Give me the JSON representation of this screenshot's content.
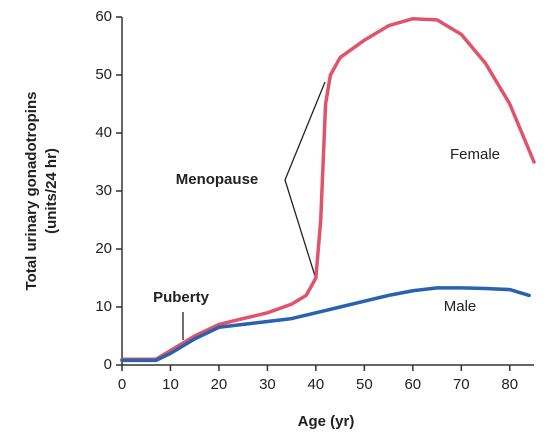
{
  "chart_data": {
    "type": "line",
    "x_label": "Age (yr)",
    "y_label": [
      "Total urinary gonadotropins",
      "(units/24 hr)"
    ],
    "xlim": [
      0,
      85
    ],
    "ylim": [
      0,
      60
    ],
    "xticks": [
      0,
      10,
      20,
      30,
      40,
      50,
      60,
      70,
      80
    ],
    "yticks": [
      0,
      10,
      20,
      30,
      40,
      50,
      60
    ],
    "grid": false,
    "series": [
      {
        "name": "Female",
        "color": "#df5468",
        "x": [
          0,
          7,
          10,
          15,
          20,
          25,
          30,
          35,
          38,
          40,
          41,
          42,
          43,
          45,
          50,
          55,
          60,
          65,
          70,
          75,
          80,
          85
        ],
        "values": [
          1,
          1,
          2.5,
          5,
          7,
          8,
          9,
          10.5,
          12,
          15,
          25,
          45,
          50,
          53,
          56,
          58.5,
          59.7,
          59.5,
          57,
          52,
          45,
          35
        ]
      },
      {
        "name": "Male",
        "color": "#2b62ad",
        "x": [
          0,
          7,
          10,
          15,
          20,
          25,
          30,
          35,
          40,
          45,
          50,
          55,
          60,
          65,
          70,
          75,
          80,
          84
        ],
        "values": [
          0.8,
          0.8,
          2,
          4.5,
          6.5,
          7,
          7.5,
          8,
          9,
          10,
          11,
          12,
          12.8,
          13.3,
          13.3,
          13.2,
          13,
          12
        ]
      }
    ],
    "annotations": [
      "Menopause",
      "Puberty"
    ]
  }
}
